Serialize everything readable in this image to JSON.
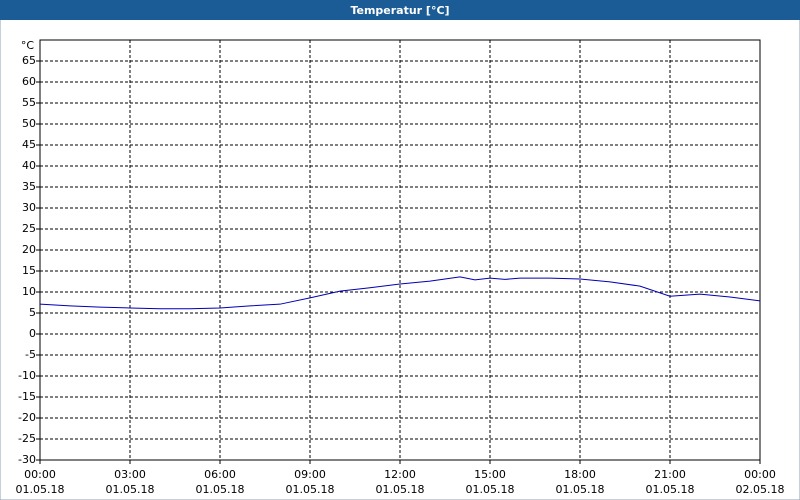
{
  "chart_data": {
    "type": "line",
    "title": "Temperatur [°C]",
    "y_label": "°C",
    "x": [
      0,
      1,
      2,
      3,
      4,
      5,
      6,
      7,
      8,
      9,
      10,
      11,
      12,
      13,
      13.5,
      14,
      14.5,
      15,
      15.5,
      16,
      17,
      18,
      19,
      20,
      21,
      22,
      23,
      24
    ],
    "series": [
      {
        "name": "Temperatur",
        "color": "#0000b4",
        "values": [
          7.1,
          6.7,
          6.4,
          6.2,
          6.0,
          6.0,
          6.2,
          6.7,
          7.1,
          8.6,
          10.2,
          11.0,
          11.9,
          12.6,
          13.1,
          13.6,
          12.9,
          13.3,
          13.0,
          13.3,
          13.3,
          13.1,
          12.4,
          11.4,
          9.0,
          9.5,
          8.8,
          7.9
        ]
      }
    ],
    "xlim": [
      0,
      24
    ],
    "xticks": [
      {
        "value": 0,
        "label": "00:00",
        "date": "01.05.18"
      },
      {
        "value": 3,
        "label": "03:00",
        "date": "01.05.18"
      },
      {
        "value": 6,
        "label": "06:00",
        "date": "01.05.18"
      },
      {
        "value": 9,
        "label": "09:00",
        "date": "01.05.18"
      },
      {
        "value": 12,
        "label": "12:00",
        "date": "01.05.18"
      },
      {
        "value": 15,
        "label": "15:00",
        "date": "01.05.18"
      },
      {
        "value": 18,
        "label": "18:00",
        "date": "01.05.18"
      },
      {
        "value": 21,
        "label": "21:00",
        "date": "01.05.18"
      },
      {
        "value": 24,
        "label": "00:00",
        "date": "02.05.18"
      }
    ],
    "ylim": [
      -30,
      70
    ],
    "yticks": [
      -30,
      -25,
      -20,
      -15,
      -10,
      -5,
      0,
      5,
      10,
      15,
      20,
      25,
      30,
      35,
      40,
      45,
      50,
      55,
      60,
      65
    ],
    "grid": true
  }
}
